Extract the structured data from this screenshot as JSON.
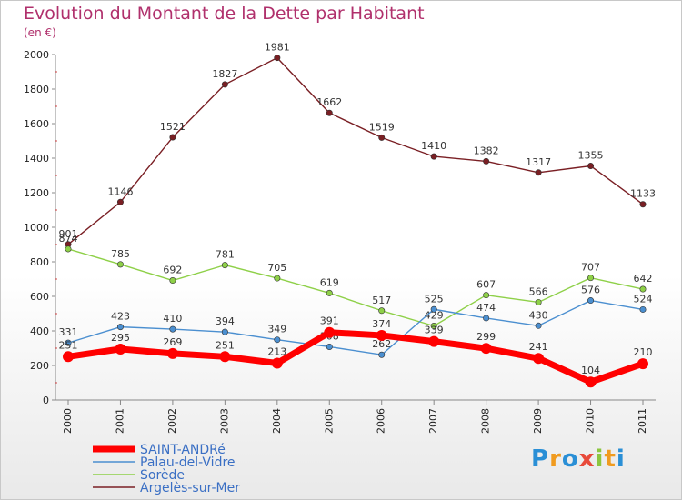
{
  "title": "Evolution du Montant de la Dette par Habitant",
  "subtitle": "(en €)",
  "logo_text": "Proxiti",
  "chart_data": {
    "type": "line",
    "x": [
      "2000",
      "2001",
      "2002",
      "2003",
      "2004",
      "2005",
      "2006",
      "2007",
      "2008",
      "2009",
      "2010",
      "2011"
    ],
    "ylim": [
      0,
      2000
    ],
    "yticks": [
      "0",
      "200",
      "400",
      "600",
      "800",
      "1000",
      "1200",
      "1400",
      "1600",
      "1800",
      "2000"
    ],
    "grid": false,
    "legend_position": "bottom-left",
    "series": [
      {
        "name": "SAINT-ANDRé",
        "color": "#ff0000",
        "values": [
          251,
          295,
          269,
          251,
          213,
          391,
          374,
          339,
          299,
          241,
          104,
          210
        ],
        "labels": [
          "251",
          "295",
          "269",
          "251",
          "213",
          "391",
          "374",
          "339",
          "299",
          "241",
          "104",
          "210"
        ]
      },
      {
        "name": "Palau-del-Vidre",
        "color": "#4b8fd0",
        "values": [
          331,
          423,
          410,
          394,
          349,
          308,
          262,
          525,
          474,
          430,
          576,
          524
        ],
        "labels": [
          "331",
          "423",
          "410",
          "394",
          "349",
          "308",
          "262",
          "525",
          "474",
          "430",
          "576",
          "524"
        ]
      },
      {
        "name": "Sorède",
        "color": "#8ed048",
        "values": [
          874,
          785,
          692,
          781,
          705,
          619,
          517,
          429,
          607,
          566,
          707,
          642
        ],
        "labels": [
          "874",
          "785",
          "692",
          "781",
          "705",
          "619",
          "517",
          "429",
          "607",
          "566",
          "707",
          "642"
        ]
      },
      {
        "name": "Argelès-sur-Mer",
        "color": "#7a1f24",
        "values": [
          901,
          1146,
          1521,
          1827,
          1981,
          1662,
          1519,
          1410,
          1382,
          1317,
          1355,
          1133
        ],
        "labels": [
          "901",
          "1146",
          "1521",
          "1827",
          "1981",
          "1662",
          "1519",
          "1410",
          "1382",
          "1317",
          "1355",
          "1133"
        ]
      }
    ]
  }
}
